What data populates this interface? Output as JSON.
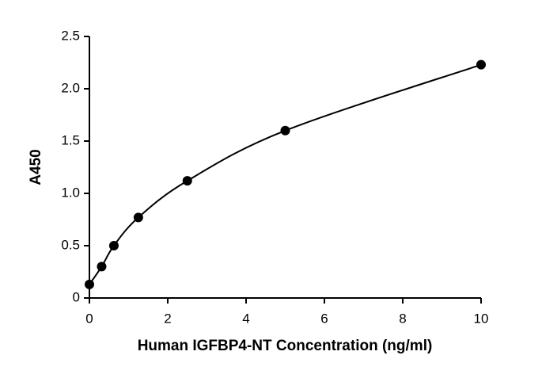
{
  "chart_data": {
    "type": "scatter",
    "xlabel": "Human IGFBP4-NT Concentration (ng/ml)",
    "ylabel": "A450",
    "x": [
      0,
      0.3125,
      0.625,
      1.25,
      2.5,
      5,
      10
    ],
    "values": [
      0.13,
      0.3,
      0.5,
      0.77,
      1.12,
      1.6,
      2.23
    ],
    "color": "#000000",
    "xlim": [
      0,
      10
    ],
    "xticks": [
      0,
      2,
      4,
      6,
      8,
      10
    ],
    "ylim": [
      0,
      2.5
    ],
    "yticks": [
      0,
      0.5,
      {
        "value": 1,
        "label": "1.0"
      },
      1.5,
      {
        "value": 2,
        "label": "2.0"
      },
      2.5
    ],
    "grid": false
  }
}
